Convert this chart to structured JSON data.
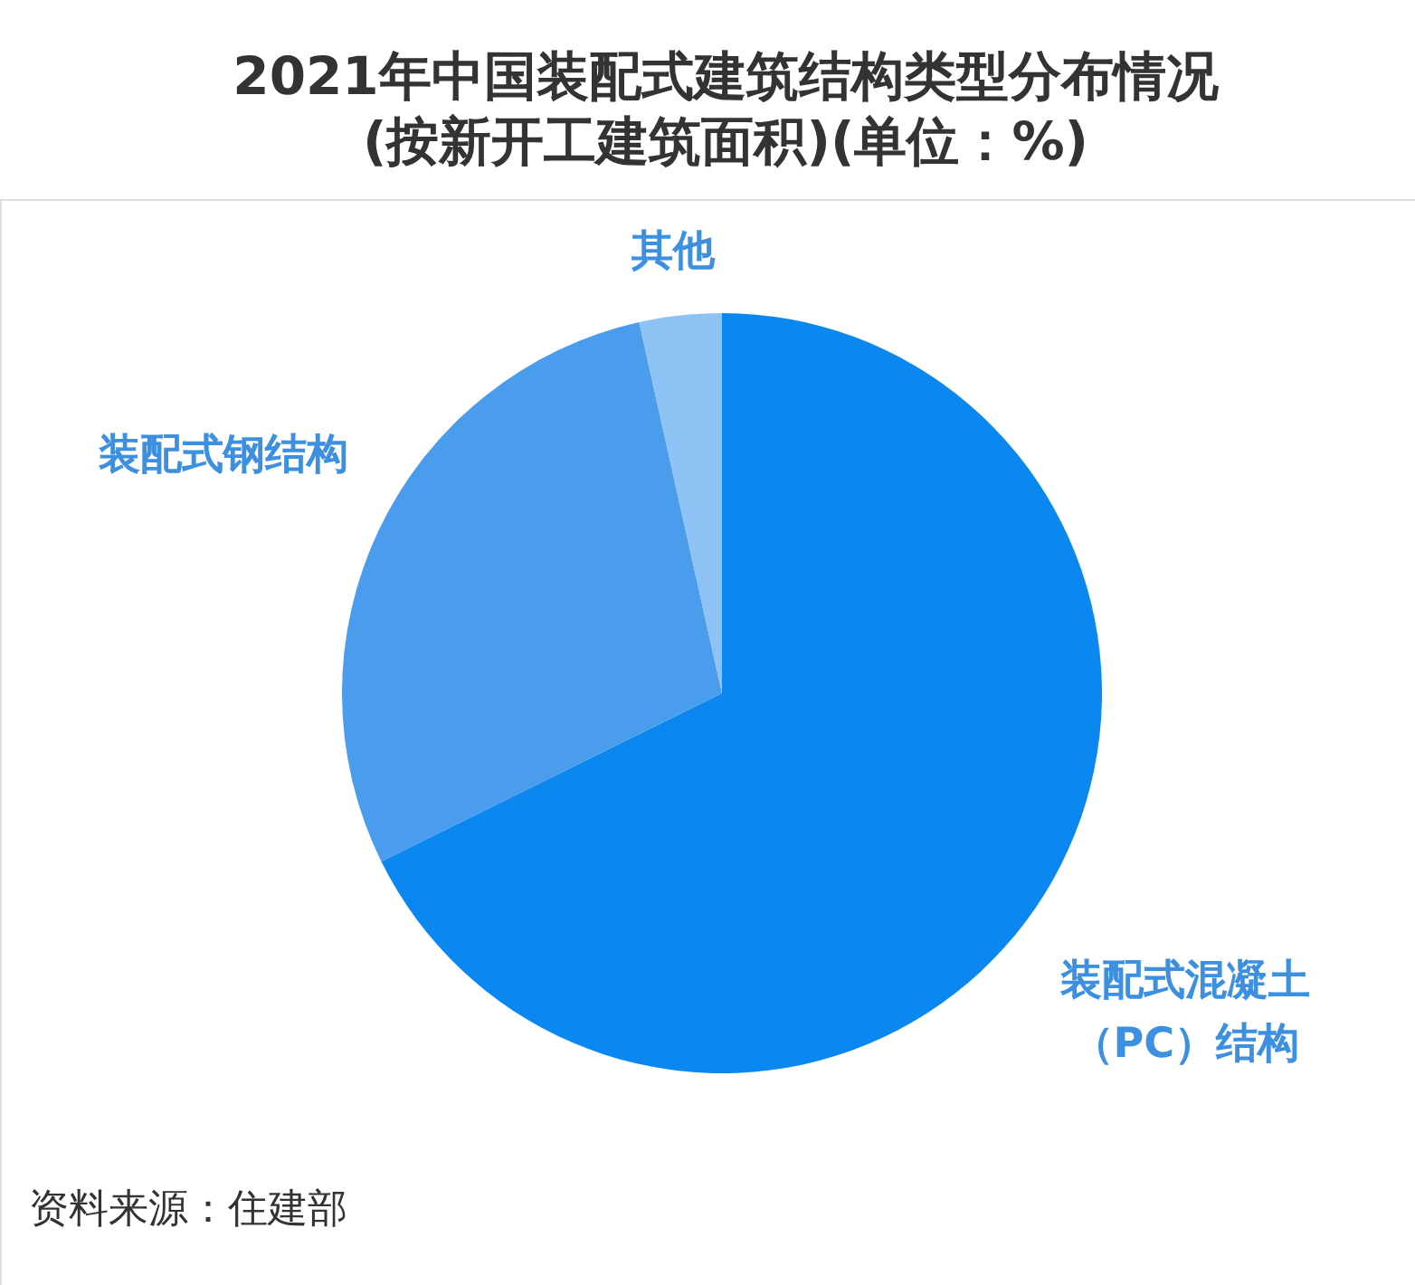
{
  "chart_data": {
    "type": "pie",
    "title": "2021年中国装配式建筑结构类型分布情况(按新开工建筑面积)(单位：%)",
    "categories": [
      "装配式混凝土（PC）结构",
      "装配式钢结构",
      "其他"
    ],
    "values": [
      67.7,
      28.8,
      3.5
    ],
    "colors": [
      "#0a88f0",
      "#4a9cec",
      "#8fc2f4"
    ],
    "annotations": [
      "资料来源：住建部"
    ]
  }
}
